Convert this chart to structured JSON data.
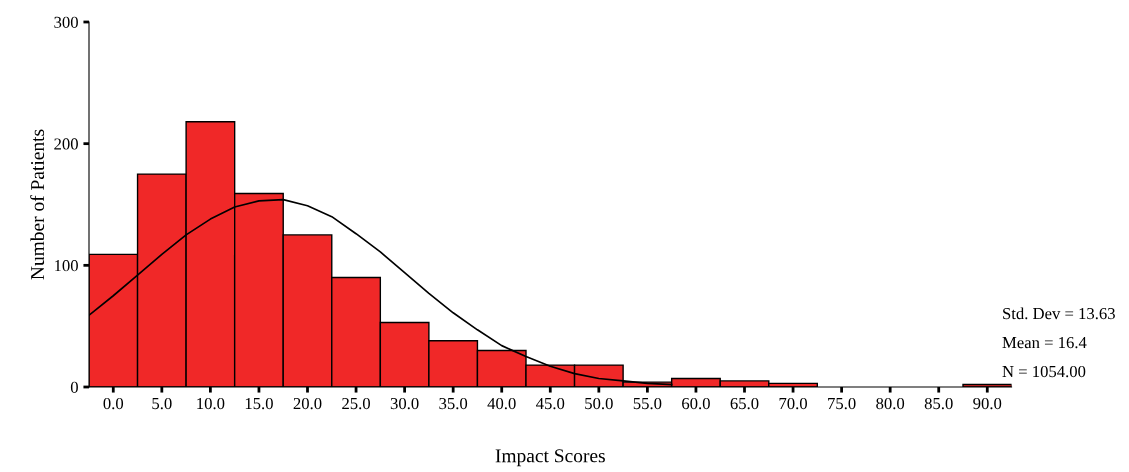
{
  "chart_data": {
    "type": "histogram",
    "xlabel": "Impact Scores",
    "ylabel": "Number of Patients",
    "bins": [
      -2.5,
      2.5,
      7.5,
      12.5,
      17.5,
      22.5,
      27.5,
      32.5,
      37.5,
      42.5,
      47.5,
      52.5,
      57.5,
      62.5,
      67.5,
      72.5,
      77.5,
      82.5,
      87.5,
      92.5
    ],
    "values": [
      109,
      175,
      218,
      159,
      125,
      90,
      53,
      38,
      30,
      18,
      18,
      4,
      7,
      5,
      3,
      0,
      0,
      0,
      2
    ],
    "color": "#f02828",
    "series": [
      {
        "type": "line",
        "color": "#000000",
        "x": [
          -2.5,
          0,
          2.5,
          5,
          7.5,
          10,
          12.5,
          15,
          17.5,
          20,
          22.5,
          25,
          27.5,
          30,
          32.5,
          35,
          37.5,
          40,
          42.5,
          45,
          47.5,
          50,
          52.5,
          55,
          57.5
        ],
        "values": [
          59,
          75,
          92,
          109,
          125,
          138,
          148,
          153,
          154,
          149,
          140,
          126,
          111,
          94,
          77,
          61,
          47,
          34,
          25,
          17,
          11,
          7,
          5,
          3,
          2
        ]
      }
    ],
    "xlim": [
      -2.5,
      92.5
    ],
    "xticks": [
      {
        "value": 0,
        "label": "0.0"
      },
      {
        "value": 5,
        "label": "5.0"
      },
      {
        "value": 10,
        "label": "10.0"
      },
      {
        "value": 15,
        "label": "15.0"
      },
      {
        "value": 20,
        "label": "20.0"
      },
      {
        "value": 25,
        "label": "25.0"
      },
      {
        "value": 30,
        "label": "30.0"
      },
      {
        "value": 35,
        "label": "35.0"
      },
      {
        "value": 40,
        "label": "40.0"
      },
      {
        "value": 45,
        "label": "45.0"
      },
      {
        "value": 50,
        "label": "50.0"
      },
      {
        "value": 55,
        "label": "55.0"
      },
      {
        "value": 60,
        "label": "60.0"
      },
      {
        "value": 65,
        "label": "65.0"
      },
      {
        "value": 70,
        "label": "70.0"
      },
      {
        "value": 75,
        "label": "75.0"
      },
      {
        "value": 80,
        "label": "80.0"
      },
      {
        "value": 85,
        "label": "85.0"
      },
      {
        "value": 90,
        "label": "90.0"
      }
    ],
    "ylim": [
      0,
      300
    ],
    "yticks": [
      0,
      100,
      200,
      300
    ],
    "annotations": [
      "Std. Dev = 13.63",
      "Mean = 16.4",
      "N = 1054.00"
    ]
  }
}
